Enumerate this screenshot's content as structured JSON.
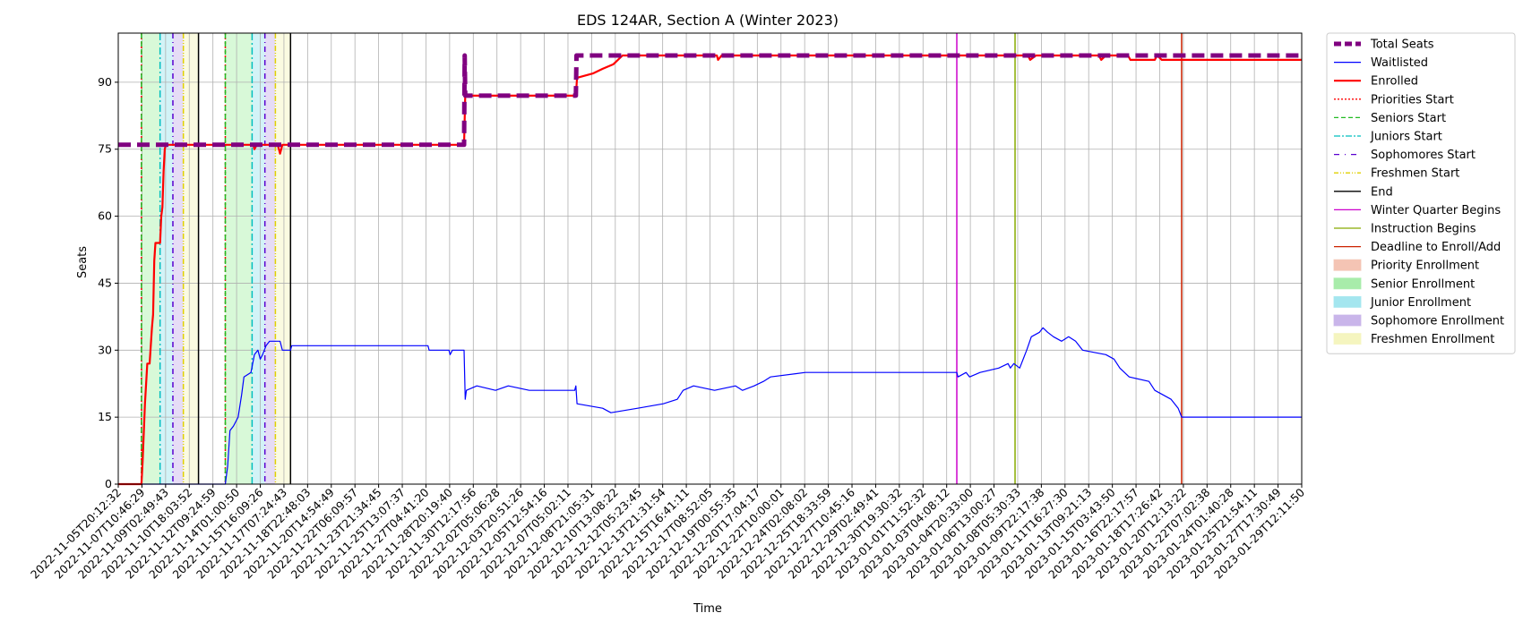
{
  "chart_data": {
    "type": "line",
    "title": "EDS 124AR, Section A (Winter 2023)",
    "xlabel": "Time",
    "ylabel": "Seats",
    "ylim": [
      0,
      101
    ],
    "yticks": [
      0,
      15,
      30,
      45,
      60,
      75,
      90
    ],
    "grid": true,
    "legend_position": "outside-right",
    "xticks": [
      "2022-11-05T20:12:32",
      "2022-11-07T10:46:29",
      "2022-11-09T02:49:43",
      "2022-11-10T18:03:52",
      "2022-11-12T09:24:59",
      "2022-11-14T01:00:50",
      "2022-11-15T16:09:26",
      "2022-11-17T07:24:43",
      "2022-11-18T22:48:03",
      "2022-11-20T14:54:49",
      "2022-11-22T06:09:57",
      "2022-11-23T21:34:45",
      "2022-11-25T13:07:37",
      "2022-11-27T04:41:20",
      "2022-11-28T20:19:40",
      "2022-11-30T12:17:56",
      "2022-12-02T05:06:28",
      "2022-12-03T20:51:26",
      "2022-12-05T12:54:16",
      "2022-12-07T05:02:11",
      "2022-12-08T21:05:31",
      "2022-12-10T13:08:22",
      "2022-12-12T05:23:45",
      "2022-12-13T21:31:54",
      "2022-12-15T16:41:11",
      "2022-12-17T08:52:05",
      "2022-12-19T00:55:35",
      "2022-12-20T17:04:17",
      "2022-12-22T10:00:01",
      "2022-12-24T02:08:02",
      "2022-12-25T18:33:59",
      "2022-12-27T10:45:16",
      "2022-12-29T02:49:41",
      "2022-12-30T19:30:32",
      "2023-01-01T11:52:32",
      "2023-01-03T04:08:12",
      "2023-01-04T20:33:00",
      "2023-01-06T13:00:27",
      "2023-01-08T05:30:33",
      "2023-01-09T22:17:38",
      "2023-01-11T16:27:30",
      "2023-01-13T09:21:13",
      "2023-01-15T03:43:50",
      "2023-01-16T22:17:57",
      "2023-01-18T17:26:42",
      "2023-01-20T12:13:22",
      "2023-01-22T07:02:38",
      "2023-01-24T01:40:28",
      "2023-01-25T21:54:11",
      "2023-01-27T17:30:49",
      "2023-01-29T12:11:50"
    ],
    "x_start": "2022-11-05T20:12:32",
    "x_end": "2023-01-29T12:11:50",
    "enrollment_periods": [
      {
        "name": "Senior Enrollment",
        "color": "#90ee90",
        "start": "2022-11-07T12:00:00",
        "end": "2022-11-08T20:00:00"
      },
      {
        "name": "Junior Enrollment",
        "color": "#7fdde8",
        "start": "2022-11-08T20:00:00",
        "end": "2022-11-09T18:00:00"
      },
      {
        "name": "Sophomore Enrollment",
        "color": "#b69ae6",
        "start": "2022-11-09T18:00:00",
        "end": "2022-11-10T12:00:00"
      },
      {
        "name": "Freshmen Enrollment",
        "color": "#f3f3a8",
        "start": "2022-11-10T12:00:00",
        "end": "2022-11-11T14:00:00"
      },
      {
        "name": "Senior Enrollment",
        "color": "#90ee90",
        "start": "2022-11-13T12:00:00",
        "end": "2022-11-15T10:00:00"
      },
      {
        "name": "Junior Enrollment",
        "color": "#7fdde8",
        "start": "2022-11-15T10:00:00",
        "end": "2022-11-16T08:00:00"
      },
      {
        "name": "Sophomore Enrollment",
        "color": "#b69ae6",
        "start": "2022-11-16T08:00:00",
        "end": "2022-11-17T02:00:00"
      },
      {
        "name": "Freshmen Enrollment",
        "color": "#f3f3a8",
        "start": "2022-11-17T02:00:00",
        "end": "2022-11-18T04:00:00"
      }
    ],
    "vertical_markers": [
      {
        "name": "Priorities Start",
        "color": "#ff0000",
        "dash": "2,3",
        "x": "2022-11-07T12:00:00"
      },
      {
        "name": "Seniors Start",
        "color": "#22bb22",
        "dash": "6,3",
        "x": "2022-11-07T12:00:00"
      },
      {
        "name": "Juniors Start",
        "color": "#00bfbf",
        "dash": "8,3,2,3",
        "x": "2022-11-08T20:00:00"
      },
      {
        "name": "Sophomores Start",
        "color": "#5a00d0",
        "dash": "6,4,1,4",
        "x": "2022-11-09T18:00:00"
      },
      {
        "name": "Freshmen Start",
        "color": "#e0d000",
        "dash": "6,2,1,2,1,2",
        "x": "2022-11-10T12:00:00"
      },
      {
        "name": "End",
        "color": "#000000",
        "dash": "",
        "x": "2022-11-11T14:00:00"
      },
      {
        "name": "Priorities Start",
        "color": "#ff0000",
        "dash": "2,3",
        "x": "2022-11-13T12:00:00"
      },
      {
        "name": "Seniors Start",
        "color": "#22bb22",
        "dash": "6,3",
        "x": "2022-11-13T12:00:00"
      },
      {
        "name": "Juniors Start",
        "color": "#00bfbf",
        "dash": "8,3,2,3",
        "x": "2022-11-15T10:00:00"
      },
      {
        "name": "Sophomores Start",
        "color": "#5a00d0",
        "dash": "6,4,1,4",
        "x": "2022-11-16T08:00:00"
      },
      {
        "name": "Freshmen Start",
        "color": "#e0d000",
        "dash": "6,2,1,2,1,2",
        "x": "2022-11-17T02:00:00"
      },
      {
        "name": "End",
        "color": "#000000",
        "dash": "",
        "x": "2022-11-18T04:00:00"
      },
      {
        "name": "Winter Quarter Begins",
        "color": "#cc00cc",
        "dash": "",
        "x": "2023-01-04T20:00:00"
      },
      {
        "name": "Instruction Begins",
        "color": "#88aa00",
        "dash": "",
        "x": "2023-01-09T00:00:00"
      },
      {
        "name": "Deadline to Enroll/Add",
        "color": "#cc2200",
        "dash": "",
        "x": "2023-01-20T22:00:00"
      }
    ],
    "series": [
      {
        "name": "Total Seats",
        "color": "#800080",
        "width": 5,
        "dash": "14,7",
        "points": [
          [
            "2022-11-05T20:12:32",
            76
          ],
          [
            "2022-11-30T14:00:00",
            76
          ],
          [
            "2022-11-30T15:00:00",
            96
          ],
          [
            "2022-11-30T16:00:00",
            87
          ],
          [
            "2022-12-08T14:00:00",
            87
          ],
          [
            "2022-12-08T15:00:00",
            96
          ],
          [
            "2023-01-29T12:11:50",
            96
          ]
        ]
      },
      {
        "name": "Enrolled",
        "color": "#ff0000",
        "width": 2.2,
        "dash": "",
        "points": [
          [
            "2022-11-05T20:12:32",
            0
          ],
          [
            "2022-11-07T12:00:00",
            0
          ],
          [
            "2022-11-07T14:00:00",
            5
          ],
          [
            "2022-11-07T18:00:00",
            18
          ],
          [
            "2022-11-07T22:00:00",
            27
          ],
          [
            "2022-11-08T02:00:00",
            27
          ],
          [
            "2022-11-08T06:00:00",
            35
          ],
          [
            "2022-11-08T08:00:00",
            38
          ],
          [
            "2022-11-08T10:00:00",
            50
          ],
          [
            "2022-11-08T12:00:00",
            54
          ],
          [
            "2022-11-08T20:00:00",
            54
          ],
          [
            "2022-11-08T22:00:00",
            60
          ],
          [
            "2022-11-09T00:00:00",
            62
          ],
          [
            "2022-11-09T02:00:00",
            70
          ],
          [
            "2022-11-09T04:00:00",
            75
          ],
          [
            "2022-11-09T06:00:00",
            76
          ],
          [
            "2022-11-15T12:00:00",
            76
          ],
          [
            "2022-11-15T14:00:00",
            75
          ],
          [
            "2022-11-15T18:00:00",
            76
          ],
          [
            "2022-11-17T06:00:00",
            76
          ],
          [
            "2022-11-17T08:00:00",
            75
          ],
          [
            "2022-11-17T10:00:00",
            74
          ],
          [
            "2022-11-17T14:00:00",
            76
          ],
          [
            "2022-11-30T14:00:00",
            76
          ],
          [
            "2022-11-30T16:00:00",
            87
          ],
          [
            "2022-12-08T14:00:00",
            87
          ],
          [
            "2022-12-08T16:00:00",
            91
          ],
          [
            "2022-12-09T20:00:00",
            92
          ],
          [
            "2022-12-10T12:00:00",
            93
          ],
          [
            "2022-12-11T06:00:00",
            94
          ],
          [
            "2022-12-11T22:00:00",
            96
          ],
          [
            "2022-12-18T16:00:00",
            96
          ],
          [
            "2022-12-18T18:00:00",
            95
          ],
          [
            "2022-12-19T00:00:00",
            96
          ],
          [
            "2023-01-09T22:00:00",
            96
          ],
          [
            "2023-01-10T02:00:00",
            95
          ],
          [
            "2023-01-10T12:00:00",
            96
          ],
          [
            "2023-01-15T00:00:00",
            96
          ],
          [
            "2023-01-15T04:00:00",
            95
          ],
          [
            "2023-01-15T12:00:00",
            96
          ],
          [
            "2023-01-17T02:00:00",
            96
          ],
          [
            "2023-01-17T06:00:00",
            95
          ],
          [
            "2023-01-19T00:00:00",
            95
          ],
          [
            "2023-01-19T04:00:00",
            96
          ],
          [
            "2023-01-19T12:00:00",
            95
          ],
          [
            "2023-01-29T12:11:50",
            95
          ]
        ]
      },
      {
        "name": "Waitlisted",
        "color": "#0000ff",
        "width": 1.2,
        "dash": "",
        "points": [
          [
            "2022-11-05T20:12:32",
            0
          ],
          [
            "2022-11-13T12:00:00",
            0
          ],
          [
            "2022-11-13T16:00:00",
            4
          ],
          [
            "2022-11-13T20:00:00",
            12
          ],
          [
            "2022-11-14T02:00:00",
            13
          ],
          [
            "2022-11-14T10:00:00",
            15
          ],
          [
            "2022-11-14T16:00:00",
            20
          ],
          [
            "2022-11-14T20:00:00",
            24
          ],
          [
            "2022-11-15T08:00:00",
            25
          ],
          [
            "2022-11-15T14:00:00",
            29
          ],
          [
            "2022-11-15T20:00:00",
            30
          ],
          [
            "2022-11-16T00:00:00",
            28
          ],
          [
            "2022-11-16T04:00:00",
            29
          ],
          [
            "2022-11-16T10:00:00",
            31
          ],
          [
            "2022-11-16T16:00:00",
            32
          ],
          [
            "2022-11-17T10:00:00",
            32
          ],
          [
            "2022-11-17T14:00:00",
            30
          ],
          [
            "2022-11-18T04:00:00",
            30
          ],
          [
            "2022-11-18T06:00:00",
            31
          ],
          [
            "2022-11-28T00:00:00",
            31
          ],
          [
            "2022-11-28T02:00:00",
            30
          ],
          [
            "2022-11-29T12:00:00",
            30
          ],
          [
            "2022-11-29T14:00:00",
            29
          ],
          [
            "2022-11-29T18:00:00",
            30
          ],
          [
            "2022-11-30T14:00:00",
            30
          ],
          [
            "2022-11-30T16:00:00",
            19
          ],
          [
            "2022-11-30T18:00:00",
            21
          ],
          [
            "2022-12-01T12:00:00",
            22
          ],
          [
            "2022-12-02T20:00:00",
            21
          ],
          [
            "2022-12-03T18:00:00",
            22
          ],
          [
            "2022-12-05T06:00:00",
            21
          ],
          [
            "2022-12-08T12:00:00",
            21
          ],
          [
            "2022-12-08T14:00:00",
            22
          ],
          [
            "2022-12-08T16:00:00",
            18
          ],
          [
            "2022-12-10T12:00:00",
            17
          ],
          [
            "2022-12-11T02:00:00",
            16
          ],
          [
            "2022-12-13T00:00:00",
            17
          ],
          [
            "2022-12-14T20:00:00",
            18
          ],
          [
            "2022-12-15T20:00:00",
            19
          ],
          [
            "2022-12-16T06:00:00",
            21
          ],
          [
            "2022-12-17T00:00:00",
            22
          ],
          [
            "2022-12-18T12:00:00",
            21
          ],
          [
            "2022-12-20T00:00:00",
            22
          ],
          [
            "2022-12-20T12:00:00",
            21
          ],
          [
            "2022-12-21T08:00:00",
            22
          ],
          [
            "2022-12-22T00:00:00",
            23
          ],
          [
            "2022-12-22T12:00:00",
            24
          ],
          [
            "2022-12-25T00:00:00",
            25
          ],
          [
            "2023-01-04T20:00:00",
            25
          ],
          [
            "2023-01-04T22:00:00",
            24
          ],
          [
            "2023-01-05T12:00:00",
            25
          ],
          [
            "2023-01-05T18:00:00",
            24
          ],
          [
            "2023-01-06T12:00:00",
            25
          ],
          [
            "2023-01-07T20:00:00",
            26
          ],
          [
            "2023-01-08T12:00:00",
            27
          ],
          [
            "2023-01-08T16:00:00",
            26
          ],
          [
            "2023-01-08T22:00:00",
            27
          ],
          [
            "2023-01-09T08:00:00",
            26
          ],
          [
            "2023-01-09T20:00:00",
            30
          ],
          [
            "2023-01-10T04:00:00",
            33
          ],
          [
            "2023-01-10T18:00:00",
            34
          ],
          [
            "2023-01-11T00:00:00",
            35
          ],
          [
            "2023-01-11T08:00:00",
            34
          ],
          [
            "2023-01-11T18:00:00",
            33
          ],
          [
            "2023-01-12T08:00:00",
            32
          ],
          [
            "2023-01-12T20:00:00",
            33
          ],
          [
            "2023-01-13T08:00:00",
            32
          ],
          [
            "2023-01-13T20:00:00",
            30
          ],
          [
            "2023-01-15T12:00:00",
            29
          ],
          [
            "2023-01-16T02:00:00",
            28
          ],
          [
            "2023-01-16T12:00:00",
            26
          ],
          [
            "2023-01-17T04:00:00",
            24
          ],
          [
            "2023-01-18T14:00:00",
            23
          ],
          [
            "2023-01-19T00:00:00",
            21
          ],
          [
            "2023-01-19T14:00:00",
            20
          ],
          [
            "2023-01-20T04:00:00",
            19
          ],
          [
            "2023-01-20T16:00:00",
            17
          ],
          [
            "2023-01-20T22:00:00",
            15
          ],
          [
            "2023-01-29T12:11:50",
            15
          ]
        ]
      }
    ],
    "legend": [
      {
        "label": "Total Seats",
        "kind": "line",
        "color": "#800080",
        "width": 5,
        "dash": "8,4"
      },
      {
        "label": "Waitlisted",
        "kind": "line",
        "color": "#0000ff",
        "width": 1.2,
        "dash": ""
      },
      {
        "label": "Enrolled",
        "kind": "line",
        "color": "#ff0000",
        "width": 2.2,
        "dash": ""
      },
      {
        "label": "Priorities Start",
        "kind": "line",
        "color": "#ff0000",
        "width": 1.3,
        "dash": "2,2"
      },
      {
        "label": "Seniors Start",
        "kind": "line",
        "color": "#22bb22",
        "width": 1.3,
        "dash": "5,3"
      },
      {
        "label": "Juniors Start",
        "kind": "line",
        "color": "#00bfbf",
        "width": 1.3,
        "dash": "7,2,2,2"
      },
      {
        "label": "Sophomores Start",
        "kind": "line",
        "color": "#5a00d0",
        "width": 1.3,
        "dash": "6,6,1,6"
      },
      {
        "label": "Freshmen Start",
        "kind": "line",
        "color": "#e0d000",
        "width": 1.3,
        "dash": "5,2,1,2,1,2"
      },
      {
        "label": "End",
        "kind": "line",
        "color": "#000000",
        "width": 1.3,
        "dash": ""
      },
      {
        "label": "Winter Quarter Begins",
        "kind": "line",
        "color": "#cc00cc",
        "width": 1.3,
        "dash": ""
      },
      {
        "label": "Instruction Begins",
        "kind": "line",
        "color": "#88aa00",
        "width": 1.3,
        "dash": ""
      },
      {
        "label": "Deadline to Enroll/Add",
        "kind": "line",
        "color": "#cc2200",
        "width": 1.3,
        "dash": ""
      },
      {
        "label": "Priority Enrollment",
        "kind": "patch",
        "color": "#f4c4b4"
      },
      {
        "label": "Senior Enrollment",
        "kind": "patch",
        "color": "#a8ecaa"
      },
      {
        "label": "Junior Enrollment",
        "kind": "patch",
        "color": "#a4e6ef"
      },
      {
        "label": "Sophomore Enrollment",
        "kind": "patch",
        "color": "#c9b5ea"
      },
      {
        "label": "Freshmen Enrollment",
        "kind": "patch",
        "color": "#f5f5bf"
      }
    ]
  }
}
